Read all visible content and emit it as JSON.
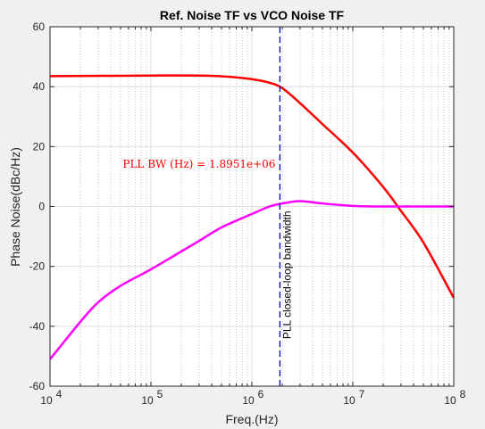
{
  "chart_data": {
    "type": "line",
    "title": "Ref. Noise TF vs VCO Noise TF",
    "xlabel": "Freq.(Hz)",
    "ylabel": "Phase Noise(dBc/Hz)",
    "xscale": "log",
    "xlim": [
      10000,
      100000000
    ],
    "ylim": [
      -60,
      60
    ],
    "x_ticks": [
      10000,
      100000,
      1000000,
      10000000,
      100000000
    ],
    "x_tick_labels": [
      {
        "base": "10",
        "exp": "4"
      },
      {
        "base": "10",
        "exp": "5"
      },
      {
        "base": "10",
        "exp": "6"
      },
      {
        "base": "10",
        "exp": "7"
      },
      {
        "base": "10",
        "exp": "8"
      }
    ],
    "y_ticks": [
      -60,
      -40,
      -20,
      0,
      20,
      40,
      60
    ],
    "y_tick_labels": [
      "-60",
      "-40",
      "-20",
      "0",
      "20",
      "40",
      "60"
    ],
    "grid": true,
    "minor_grid": true,
    "series": [
      {
        "color": "#ff0000",
        "x": [
          10000,
          100000,
          300000,
          600000,
          1000000,
          1500000,
          2000000,
          3000000,
          5000000,
          10000000,
          20000000,
          30000000,
          50000000,
          100000000
        ],
        "y": [
          43.5,
          43.7,
          43.7,
          43.3,
          42.5,
          41.3,
          39.5,
          34.5,
          27.5,
          18.0,
          6.5,
          -1.5,
          -12.0,
          -30.5
        ]
      },
      {
        "color": "#ff00ff",
        "x": [
          10000,
          20000,
          30000,
          50000,
          100000,
          200000,
          300000,
          500000,
          1000000,
          1500000,
          2000000,
          3000000,
          5000000,
          10000000,
          20000000,
          100000000
        ],
        "y": [
          -51.0,
          -38.5,
          -32.0,
          -26.5,
          -21.0,
          -15.0,
          -11.5,
          -7.0,
          -2.5,
          0.0,
          1.0,
          1.8,
          1.0,
          0.2,
          0.0,
          0.0
        ]
      }
    ],
    "vline": {
      "x": 1895100,
      "color": "#0000bb",
      "style": "dashed",
      "label": "PLL closed-loop bandwidth"
    },
    "annotation": {
      "text": "PLL BW (Hz) = 1.8951e+06",
      "x": 300000,
      "y": 13,
      "color": "#ff0000"
    }
  },
  "colors": {
    "figure_bg": "#f0f0f0",
    "axes_bg": "#ffffff",
    "grid": "#dedede",
    "axis": "#262626"
  }
}
